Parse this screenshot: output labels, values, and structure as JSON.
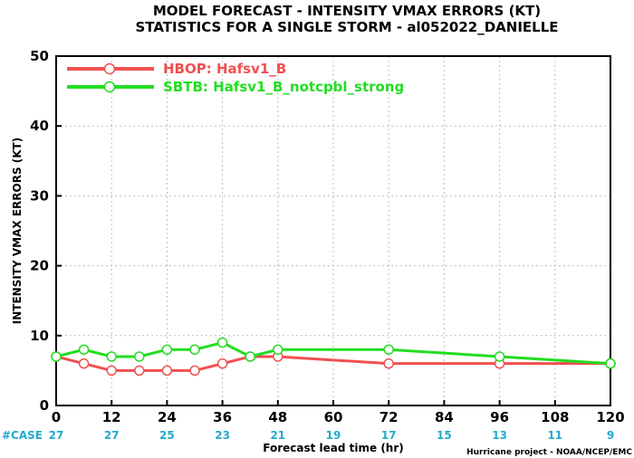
{
  "chart_data": {
    "type": "line",
    "title": "MODEL FORECAST - INTENSITY VMAX ERRORS (KT)",
    "subtitle": "STATISTICS FOR A SINGLE STORM - al052022_DANIELLE",
    "xlabel": "Forecast lead time (hr)",
    "ylabel": "INTENSITY VMAX ERRORS (KT)",
    "xlim": [
      0,
      120
    ],
    "ylim": [
      0,
      50
    ],
    "xticks": [
      0,
      12,
      24,
      36,
      48,
      60,
      72,
      84,
      96,
      108,
      120
    ],
    "yticks": [
      0,
      10,
      20,
      30,
      40,
      50
    ],
    "grid": true,
    "legend_position": "top-left",
    "case_label": "#CASE",
    "cases": {
      "x": [
        0,
        12,
        24,
        36,
        48,
        60,
        72,
        84,
        96,
        108,
        120
      ],
      "values": [
        27,
        27,
        25,
        23,
        21,
        19,
        17,
        15,
        13,
        11,
        9
      ]
    },
    "series": [
      {
        "name": "HBOP: Hafsv1_B",
        "color": "#f05050",
        "x": [
          0,
          6,
          12,
          18,
          24,
          30,
          36,
          42,
          48,
          72,
          96,
          120
        ],
        "values": [
          7,
          6,
          5,
          5,
          5,
          5,
          6,
          7,
          7,
          6,
          6,
          6
        ]
      },
      {
        "name": "SBTB: Hafsv1_B_notcpbl_strong",
        "color": "#22dd22",
        "x": [
          0,
          6,
          12,
          18,
          24,
          30,
          36,
          42,
          48,
          72,
          96,
          120
        ],
        "values": [
          7,
          8,
          7,
          7,
          8,
          8,
          9,
          7,
          8,
          8,
          7,
          6
        ]
      }
    ],
    "credit": "Hurricane project - NOAA/NCEP/EMC"
  }
}
